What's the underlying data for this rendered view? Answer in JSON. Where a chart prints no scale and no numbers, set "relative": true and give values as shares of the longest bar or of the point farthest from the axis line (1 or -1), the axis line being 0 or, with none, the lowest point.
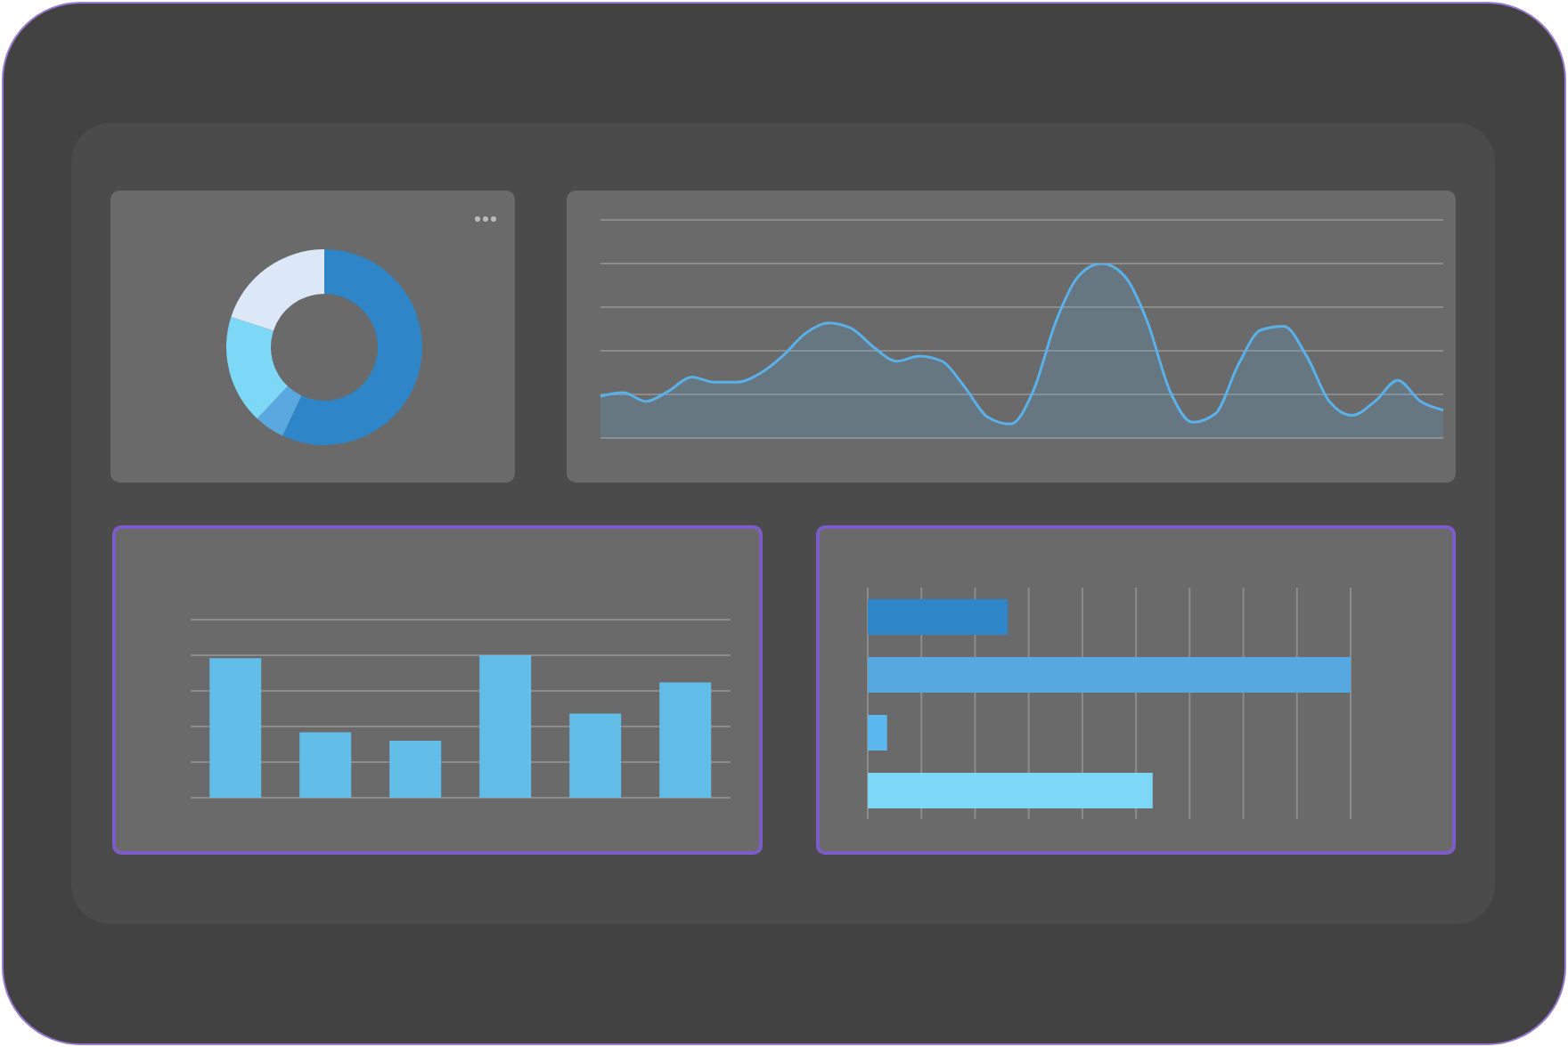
{
  "chart_data": [
    {
      "type": "donut",
      "categories": [
        null,
        null,
        null,
        null
      ],
      "values": [
        57,
        5,
        18,
        20
      ],
      "colors": [
        "#2e86c8",
        "#5aa8e0",
        "#7dd8f8",
        "#dce8f8"
      ]
    },
    {
      "type": "area",
      "relative": true,
      "grid": "y",
      "categories": [
        null,
        null,
        null,
        null,
        null,
        null,
        null,
        null,
        null,
        null,
        null,
        null,
        null,
        null,
        null,
        null,
        null,
        null,
        null,
        null,
        null,
        null,
        null,
        null,
        null,
        null,
        null,
        null,
        null,
        null,
        null,
        null,
        null,
        null,
        null,
        null,
        null,
        null
      ],
      "series": [
        {
          "color": "#5ab0e8",
          "values": [
            0.24,
            0.26,
            0.21,
            0.27,
            0.35,
            0.32,
            0.32,
            0.37,
            0.47,
            0.6,
            0.66,
            0.63,
            0.52,
            0.44,
            0.47,
            0.44,
            0.29,
            0.12,
            0.08,
            0.27,
            0.67,
            0.93,
            1,
            0.93,
            0.67,
            0.27,
            0.09,
            0.14,
            0.42,
            0.62,
            0.64,
            0.47,
            0.21,
            0.13,
            0.21,
            0.33,
            0.21,
            0.16
          ]
        }
      ]
    },
    {
      "type": "bar",
      "relative": true,
      "grid": "y",
      "categories": [
        null,
        null,
        null,
        null,
        null,
        null
      ],
      "values": [
        0.98,
        0.46,
        0.4,
        1,
        0.59,
        0.81
      ],
      "color": "#62bde8"
    },
    {
      "type": "bar",
      "orientation": "horizontal",
      "relative": true,
      "grid": "x",
      "categories": [
        null,
        null,
        null,
        null
      ],
      "values": [
        0.29,
        1,
        0.04,
        0.59
      ],
      "colors": [
        "#2e86c8",
        "#55a8e0",
        "#5ab8ef",
        "#7dd8f8"
      ]
    }
  ]
}
